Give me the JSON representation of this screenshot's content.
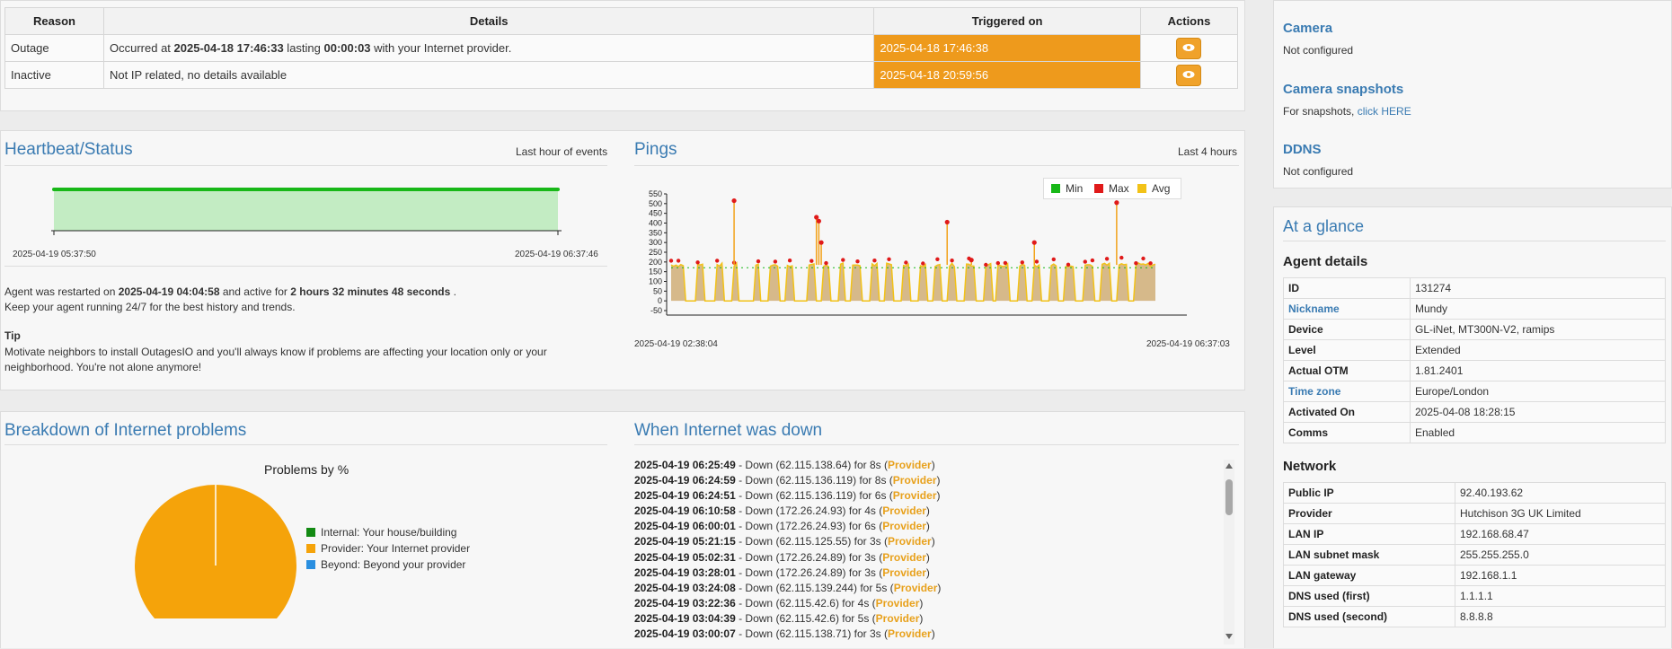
{
  "alerts": {
    "headers": [
      "Reason",
      "Details",
      "Triggered on",
      "Actions"
    ],
    "rows": [
      {
        "reason": "Outage",
        "details_pre": "Occurred at ",
        "details_time": "2025-04-18 17:46:33",
        "details_mid": " lasting ",
        "details_dur": "00:00:03",
        "details_post": " with your Internet provider.",
        "triggered": "2025-04-18 17:46:38",
        "action_icon": "eye-icon"
      },
      {
        "reason": "Inactive",
        "details_pre": "Not IP related, no details available",
        "details_time": "",
        "details_mid": "",
        "details_dur": "",
        "details_post": "",
        "triggered": "2025-04-18 20:59:56",
        "action_icon": "eye-icon"
      }
    ]
  },
  "heartbeat": {
    "title": "Heartbeat/Status",
    "note": "Last hour of events",
    "start": "2025-04-19 05:37:50",
    "end": "2025-04-19 06:37:46",
    "status_line_pre": "Agent was restarted on ",
    "status_restart": "2025-04-19 04:04:58",
    "status_line_mid": " and active for ",
    "status_active": "2 hours 32 minutes 48 seconds",
    "status_line_post": " .",
    "keep_running": "Keep your agent running 24/7 for the best history and trends.",
    "tip_label": "Tip",
    "tip_text": "Motivate neighbors to install OutagesIO and you'll always know if problems are affecting your location only or your neighborhood. You're not alone anymore!"
  },
  "pings": {
    "title": "Pings",
    "note": "Last 4 hours",
    "legend": [
      {
        "label": "Min",
        "color": "#18b818"
      },
      {
        "label": "Max",
        "color": "#e01a1a"
      },
      {
        "label": "Avg",
        "color": "#f2c218"
      }
    ],
    "y_ticks": [
      "550",
      "500",
      "450",
      "400",
      "350",
      "300",
      "250",
      "200",
      "150",
      "100",
      "50",
      "0",
      "-50"
    ],
    "x_start": "2025-04-19 02:38:04",
    "x_end": "2025-04-19 06:37:03"
  },
  "breakdown": {
    "title": "Breakdown of Internet problems",
    "chart_title": "Problems by %",
    "legend": [
      {
        "label": "Internal: Your house/building",
        "color": "#138a13"
      },
      {
        "label": "Provider: Your Internet provider",
        "color": "#f5a30a"
      },
      {
        "label": "Beyond: Beyond your provider",
        "color": "#2a8fe0"
      }
    ]
  },
  "downtime": {
    "title": "When Internet was down",
    "rows": [
      {
        "time": "2025-04-19 06:25:49",
        "ip": "62.115.138.64",
        "dur": "8s",
        "who": "Provider"
      },
      {
        "time": "2025-04-19 06:24:59",
        "ip": "62.115.136.119",
        "dur": "8s",
        "who": "Provider"
      },
      {
        "time": "2025-04-19 06:24:51",
        "ip": "62.115.136.119",
        "dur": "6s",
        "who": "Provider"
      },
      {
        "time": "2025-04-19 06:10:58",
        "ip": "172.26.24.93",
        "dur": "4s",
        "who": "Provider"
      },
      {
        "time": "2025-04-19 06:00:01",
        "ip": "172.26.24.93",
        "dur": "6s",
        "who": "Provider"
      },
      {
        "time": "2025-04-19 05:21:15",
        "ip": "62.115.125.55",
        "dur": "3s",
        "who": "Provider"
      },
      {
        "time": "2025-04-19 05:02:31",
        "ip": "172.26.24.89",
        "dur": "3s",
        "who": "Provider"
      },
      {
        "time": "2025-04-19 03:28:01",
        "ip": "172.26.24.89",
        "dur": "3s",
        "who": "Provider"
      },
      {
        "time": "2025-04-19 03:24:08",
        "ip": "62.115.139.244",
        "dur": "5s",
        "who": "Provider"
      },
      {
        "time": "2025-04-19 03:22:36",
        "ip": "62.115.42.6",
        "dur": "4s",
        "who": "Provider"
      },
      {
        "time": "2025-04-19 03:04:39",
        "ip": "62.115.42.6",
        "dur": "5s",
        "who": "Provider"
      },
      {
        "time": "2025-04-19 03:00:07",
        "ip": "62.115.138.71",
        "dur": "3s",
        "who": "Provider"
      }
    ]
  },
  "right": {
    "camera_label": "Camera",
    "camera_value": "Not configured",
    "snap_label": "Camera snapshots",
    "snap_text": "For snapshots, ",
    "snap_link": "click HERE",
    "ddns_label": "DDNS",
    "ddns_value": "Not configured",
    "glance_title": "At a glance",
    "agent_heading": "Agent details",
    "agent": [
      {
        "k": "ID",
        "v": "131274",
        "link": false
      },
      {
        "k": "Nickname",
        "v": "Mundy",
        "link": true
      },
      {
        "k": "Device",
        "v": "GL-iNet, MT300N-V2, ramips",
        "link": false
      },
      {
        "k": "Level",
        "v": "Extended",
        "link": false
      },
      {
        "k": "Actual OTM",
        "v": "1.81.2401",
        "link": false
      },
      {
        "k": "Time zone",
        "v": "Europe/London",
        "link": true
      },
      {
        "k": "Activated On",
        "v": "2025-04-08 18:28:15",
        "link": false
      },
      {
        "k": "Comms",
        "v": "Enabled",
        "link": false
      }
    ],
    "network_heading": "Network",
    "network": [
      {
        "k": "Public IP",
        "v": "92.40.193.62"
      },
      {
        "k": "Provider",
        "v": "Hutchison 3G UK Limited"
      },
      {
        "k": "LAN IP",
        "v": "192.168.68.47"
      },
      {
        "k": "LAN subnet mask",
        "v": "255.255.255.0"
      },
      {
        "k": "LAN gateway",
        "v": "192.168.1.1"
      },
      {
        "k": "DNS used (first)",
        "v": "1.1.1.1"
      },
      {
        "k": "DNS used (second)",
        "v": "8.8.8.8"
      }
    ]
  }
}
